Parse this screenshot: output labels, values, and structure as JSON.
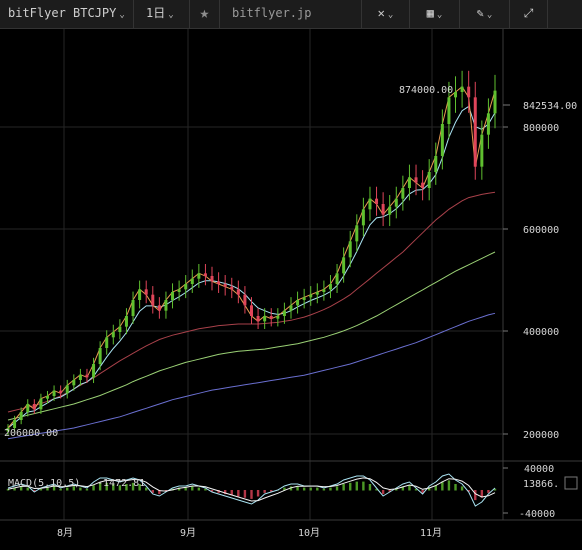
{
  "toolbar": {
    "symbol": "bitFlyer BTCJPY",
    "interval": "1日",
    "source": "bitflyer.jp",
    "star_icon": "star-icon",
    "crosshair_icon": "crosshair-icon",
    "candle_icon": "candlestick-icon",
    "pen_icon": "pencil-icon",
    "fullscreen_icon": "fullscreen-icon"
  },
  "price_axis": {
    "ticks": [
      "800000",
      "600000",
      "400000",
      "200000"
    ],
    "last_price": "842534.00"
  },
  "annotations": {
    "high": "874000.00",
    "low": "206000.00"
  },
  "macd": {
    "label": "MACD(5,10,5)",
    "value": "-1472.81",
    "axis_ticks": [
      "40000",
      "-40000"
    ],
    "current": "13866."
  },
  "time_axis": {
    "ticks": [
      "8月",
      "9月",
      "10月",
      "11月"
    ]
  },
  "colors": {
    "up": "#5fbf2f",
    "down": "#e0455a",
    "price_line": "#e89a52",
    "ema_short": "#a9e3f2",
    "ma_red": "#a8414a",
    "ma_green": "#9ad075",
    "ma_blue": "#6a6fd0",
    "macd_line": "#a9e3f2",
    "signal_line": "#f2f2f2"
  },
  "chart_data": {
    "type": "candlestick",
    "ylim": [
      150000,
      900000
    ],
    "closes": [
      210000,
      225000,
      240000,
      255000,
      245000,
      265000,
      270000,
      280000,
      275000,
      290000,
      300000,
      310000,
      305000,
      330000,
      360000,
      380000,
      390000,
      400000,
      420000,
      450000,
      470000,
      460000,
      440000,
      430000,
      450000,
      465000,
      470000,
      480000,
      490000,
      500000,
      495000,
      485000,
      480000,
      475000,
      470000,
      460000,
      440000,
      420000,
      410000,
      420000,
      415000,
      420000,
      430000,
      440000,
      450000,
      455000,
      460000,
      465000,
      470000,
      480000,
      500000,
      530000,
      560000,
      590000,
      620000,
      640000,
      630000,
      610000,
      625000,
      640000,
      660000,
      680000,
      670000,
      660000,
      690000,
      720000,
      780000,
      830000,
      840000,
      850000,
      830000,
      700000,
      760000,
      800000,
      842534
    ],
    "ema_5": [
      210000,
      220000,
      230000,
      240000,
      242000,
      250000,
      257000,
      265000,
      268000,
      275000,
      283000,
      292000,
      296000,
      307000,
      325000,
      343000,
      359000,
      373000,
      389000,
      409000,
      429000,
      439000,
      439000,
      436000,
      441000,
      449000,
      456000,
      464000,
      473000,
      482000,
      486000,
      486000,
      484000,
      481000,
      477000,
      471000,
      461000,
      447000,
      435000,
      430000,
      425000,
      423000,
      425000,
      430000,
      437000,
      443000,
      449000,
      454000,
      459000,
      466000,
      477000,
      495000,
      517000,
      541000,
      567000,
      591000,
      604000,
      606000,
      612000,
      621000,
      634000,
      649000,
      656000,
      657000,
      668000,
      685000,
      717000,
      755000,
      783000,
      805000,
      813000,
      775000,
      770000,
      780000,
      801000
    ],
    "ma_red": [
      240000,
      243000,
      246000,
      249000,
      252000,
      256000,
      260000,
      265000,
      270000,
      276000,
      283000,
      290000,
      297000,
      304000,
      312000,
      320000,
      328000,
      336000,
      343000,
      350000,
      357000,
      364000,
      370000,
      376000,
      380000,
      384000,
      387000,
      390000,
      393000,
      396000,
      398000,
      400000,
      402000,
      403000,
      404000,
      405000,
      405000,
      405000,
      405000,
      406000,
      407000,
      408000,
      410000,
      412000,
      415000,
      418000,
      422000,
      427000,
      432000,
      438000,
      445000,
      452000,
      460000,
      470000,
      480000,
      490000,
      500000,
      510000,
      520000,
      530000,
      540000,
      552000,
      564000,
      576000,
      588000,
      600000,
      610000,
      620000,
      628000,
      636000,
      642000,
      645000,
      648000,
      650000,
      652000
    ],
    "ma_green": [
      225000,
      228000,
      231000,
      234000,
      237000,
      240000,
      243000,
      246000,
      249000,
      252000,
      255000,
      259000,
      263000,
      267000,
      271000,
      276000,
      281000,
      286000,
      291000,
      297000,
      302000,
      307000,
      312000,
      317000,
      321000,
      325000,
      329000,
      333000,
      336000,
      339000,
      342000,
      345000,
      348000,
      350000,
      352000,
      354000,
      355000,
      356000,
      357000,
      358000,
      360000,
      362000,
      364000,
      366000,
      368000,
      371000,
      374000,
      377000,
      380000,
      384000,
      388000,
      392000,
      397000,
      402000,
      408000,
      414000,
      420000,
      427000,
      434000,
      441000,
      448000,
      455000,
      462000,
      469000,
      476000,
      483000,
      490000,
      497000,
      504000,
      510000,
      516000,
      522000,
      528000,
      534000,
      540000
    ],
    "ma_blue": [
      190000,
      192000,
      194000,
      196000,
      198000,
      200000,
      202000,
      204000,
      206000,
      208000,
      210000,
      213000,
      216000,
      219000,
      222000,
      225000,
      228000,
      231000,
      235000,
      239000,
      243000,
      247000,
      251000,
      255000,
      259000,
      263000,
      266000,
      269000,
      272000,
      275000,
      278000,
      281000,
      283000,
      285000,
      287000,
      289000,
      291000,
      293000,
      295000,
      297000,
      299000,
      301000,
      303000,
      305000,
      307000,
      309000,
      312000,
      315000,
      318000,
      321000,
      324000,
      327000,
      330000,
      334000,
      338000,
      342000,
      346000,
      350000,
      354000,
      358000,
      362000,
      366000,
      370000,
      375000,
      380000,
      385000,
      390000,
      395000,
      400000,
      405000,
      410000,
      414000,
      418000,
      422000,
      425000
    ],
    "macd_hist": [
      0.1,
      0.2,
      0.3,
      0.2,
      -0.1,
      0.1,
      0.2,
      0.3,
      0.1,
      0.2,
      0.3,
      0.2,
      0.1,
      0.4,
      0.6,
      0.6,
      0.5,
      0.4,
      0.5,
      0.6,
      0.5,
      0.2,
      -0.2,
      -0.3,
      -0.1,
      0.1,
      0.2,
      0.2,
      0.3,
      0.2,
      0.1,
      -0.1,
      -0.2,
      -0.3,
      -0.4,
      -0.5,
      -0.6,
      -0.7,
      -0.5,
      -0.2,
      -0.1,
      0.0,
      0.2,
      0.3,
      0.3,
      0.2,
      0.2,
      0.2,
      0.1,
      0.2,
      0.3,
      0.5,
      0.6,
      0.7,
      0.7,
      0.5,
      0.1,
      -0.3,
      -0.1,
      0.1,
      0.3,
      0.4,
      0.1,
      -0.2,
      0.2,
      0.4,
      0.7,
      0.8,
      0.5,
      0.3,
      -0.1,
      -0.8,
      -0.6,
      -0.2,
      0.1
    ]
  }
}
